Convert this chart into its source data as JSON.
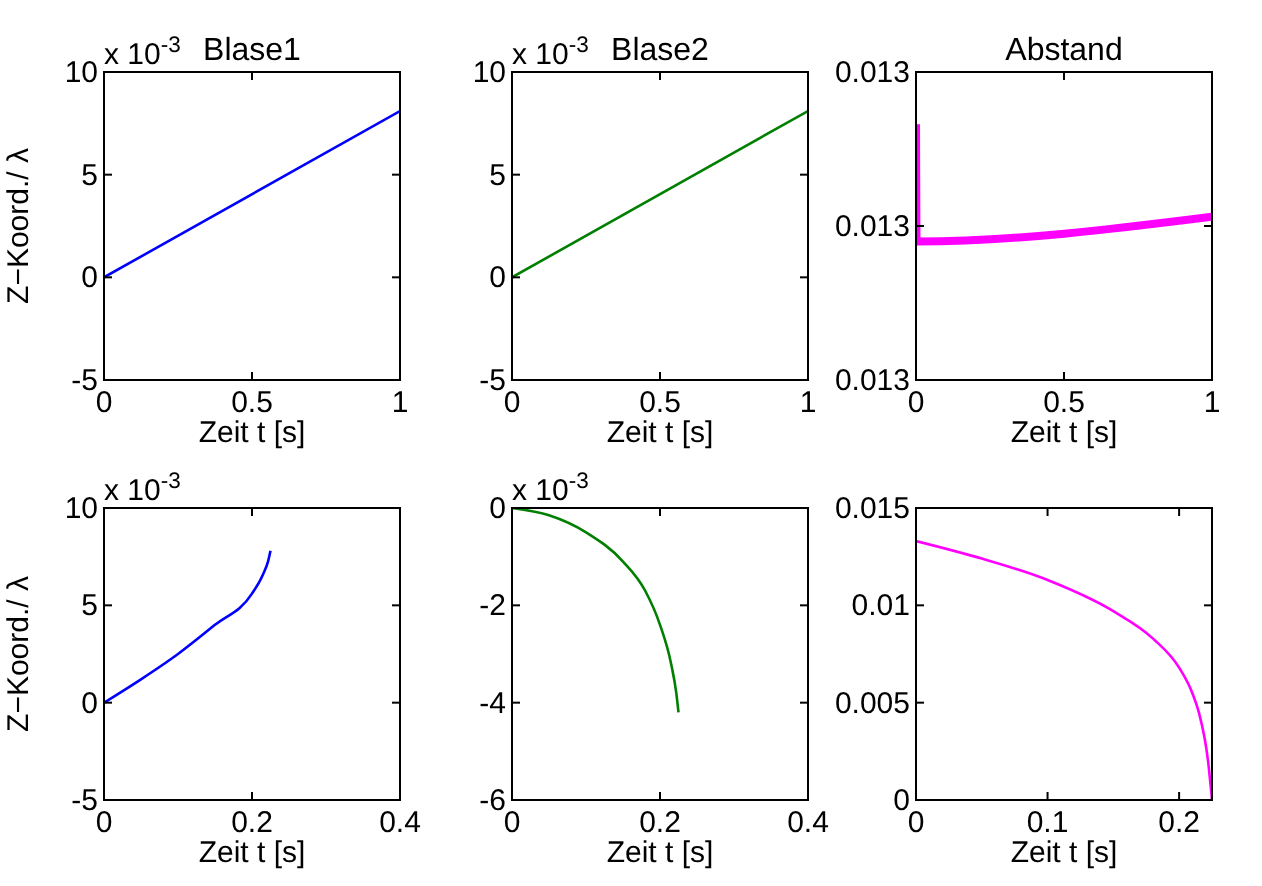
{
  "chart_data": [
    {
      "type": "line",
      "title": "Blase1",
      "ylabel": "Z−Koord./ λ",
      "xlabel": "Zeit t [s]",
      "annotations": [
        "x 10$^{-3}$"
      ],
      "xlim": [
        0,
        1
      ],
      "xticks": [
        0,
        0.5,
        1
      ],
      "ylim": [
        -5,
        10
      ],
      "yticks": [
        -5,
        0,
        5,
        10
      ],
      "series": [
        {
          "color": "#0000ff",
          "x": [
            0,
            1
          ],
          "values": [
            0,
            8.1
          ]
        }
      ]
    },
    {
      "type": "line",
      "title": "Blase2",
      "xlabel": "Zeit t [s]",
      "annotations": [
        "x 10$^{-3}$"
      ],
      "xlim": [
        0,
        1
      ],
      "xticks": [
        0,
        0.5,
        1
      ],
      "ylim": [
        -5,
        10
      ],
      "yticks": [
        -5,
        0,
        5,
        10
      ],
      "series": [
        {
          "color": "#007f00",
          "x": [
            0,
            1
          ],
          "values": [
            0,
            8.1
          ]
        }
      ]
    },
    {
      "type": "line",
      "title": "Abstand",
      "xlabel": "Zeit t [s]",
      "xlim": [
        0,
        1
      ],
      "xticks": [
        0,
        0.5,
        1
      ],
      "ylim": [
        0.01295,
        0.01305
      ],
      "yticks": [
        {
          "value": 0.01295,
          "label": "0.013"
        },
        {
          "value": 0.013,
          "label": "0.013"
        },
        {
          "value": 0.01305,
          "label": "0.013"
        }
      ],
      "series": [
        {
          "color": "#ff00ff",
          "x": [
            0,
            0.002,
            1
          ],
          "values": [
            0.013033,
            0.012995,
            0.013003
          ]
        }
      ]
    },
    {
      "type": "line",
      "ylabel": "Z−Koord./ λ",
      "xlabel": "Zeit t [s]",
      "annotations": [
        "x 10$^{-3}$"
      ],
      "xlim": [
        0,
        0.4
      ],
      "xticks": [
        0,
        0.2,
        0.4
      ],
      "ylim": [
        -5,
        10
      ],
      "yticks": [
        -5,
        0,
        5,
        10
      ],
      "series": [
        {
          "color": "#0000ff",
          "x": [
            0,
            0.05,
            0.1,
            0.15,
            0.2,
            0.215,
            0.222,
            0.225
          ],
          "values": [
            0,
            1.2,
            2.5,
            4.0,
            5.6,
            6.6,
            7.3,
            7.8
          ]
        }
      ]
    },
    {
      "type": "line",
      "xlabel": "Zeit t [s]",
      "annotations": [
        "x 10$^{-3}$"
      ],
      "xlim": [
        0,
        0.4
      ],
      "xticks": [
        0,
        0.2,
        0.4
      ],
      "ylim": [
        -6,
        0
      ],
      "yticks": [
        -6,
        -4,
        -2,
        0
      ],
      "series": [
        {
          "color": "#007f00",
          "x": [
            0,
            0.05,
            0.1,
            0.15,
            0.18,
            0.2,
            0.215,
            0.222,
            0.225
          ],
          "values": [
            0,
            -0.15,
            -0.5,
            -1.1,
            -1.7,
            -2.4,
            -3.2,
            -3.8,
            -4.2
          ]
        }
      ]
    },
    {
      "type": "line",
      "xlabel": "Zeit t [s]",
      "xlim": [
        0,
        0.225
      ],
      "xticks": [
        0,
        0.1,
        0.2
      ],
      "ylim": [
        0,
        0.015
      ],
      "yticks": [
        0,
        0.005,
        0.01,
        0.015
      ],
      "series": [
        {
          "color": "#ff00ff",
          "x": [
            0,
            0.05,
            0.1,
            0.15,
            0.18,
            0.2,
            0.21,
            0.215,
            0.222,
            0.225
          ],
          "values": [
            0.0133,
            0.0124,
            0.0113,
            0.0097,
            0.0083,
            0.0068,
            0.0055,
            0.0045,
            0.002,
            0
          ]
        }
      ]
    }
  ]
}
